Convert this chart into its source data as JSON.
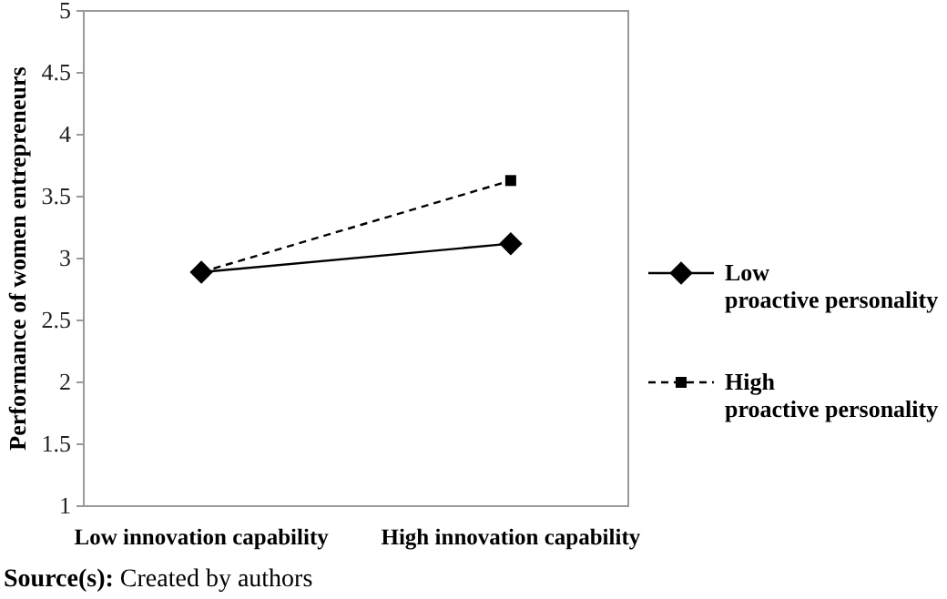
{
  "chart_data": {
    "type": "line",
    "ylabel": "Performance of women entrepreneurs",
    "categories": [
      "Low innovation capability",
      "High innovation capability"
    ],
    "series": [
      {
        "name": "Low proactive personality",
        "color": "#000000",
        "values": [
          2.89,
          3.12
        ],
        "marker": "diamond",
        "line_style": "solid"
      },
      {
        "name": "High proactive personality",
        "color": "#000000",
        "values": [
          2.89,
          3.63
        ],
        "marker": "square",
        "line_style": "dashed"
      }
    ],
    "ylim": [
      1,
      5
    ],
    "yticks": [
      1,
      1.5,
      2,
      2.5,
      3,
      3.5,
      4,
      4.5,
      5
    ],
    "grid": false,
    "legend": "right",
    "annotations": [
      "Source(s): Created by authors"
    ]
  }
}
